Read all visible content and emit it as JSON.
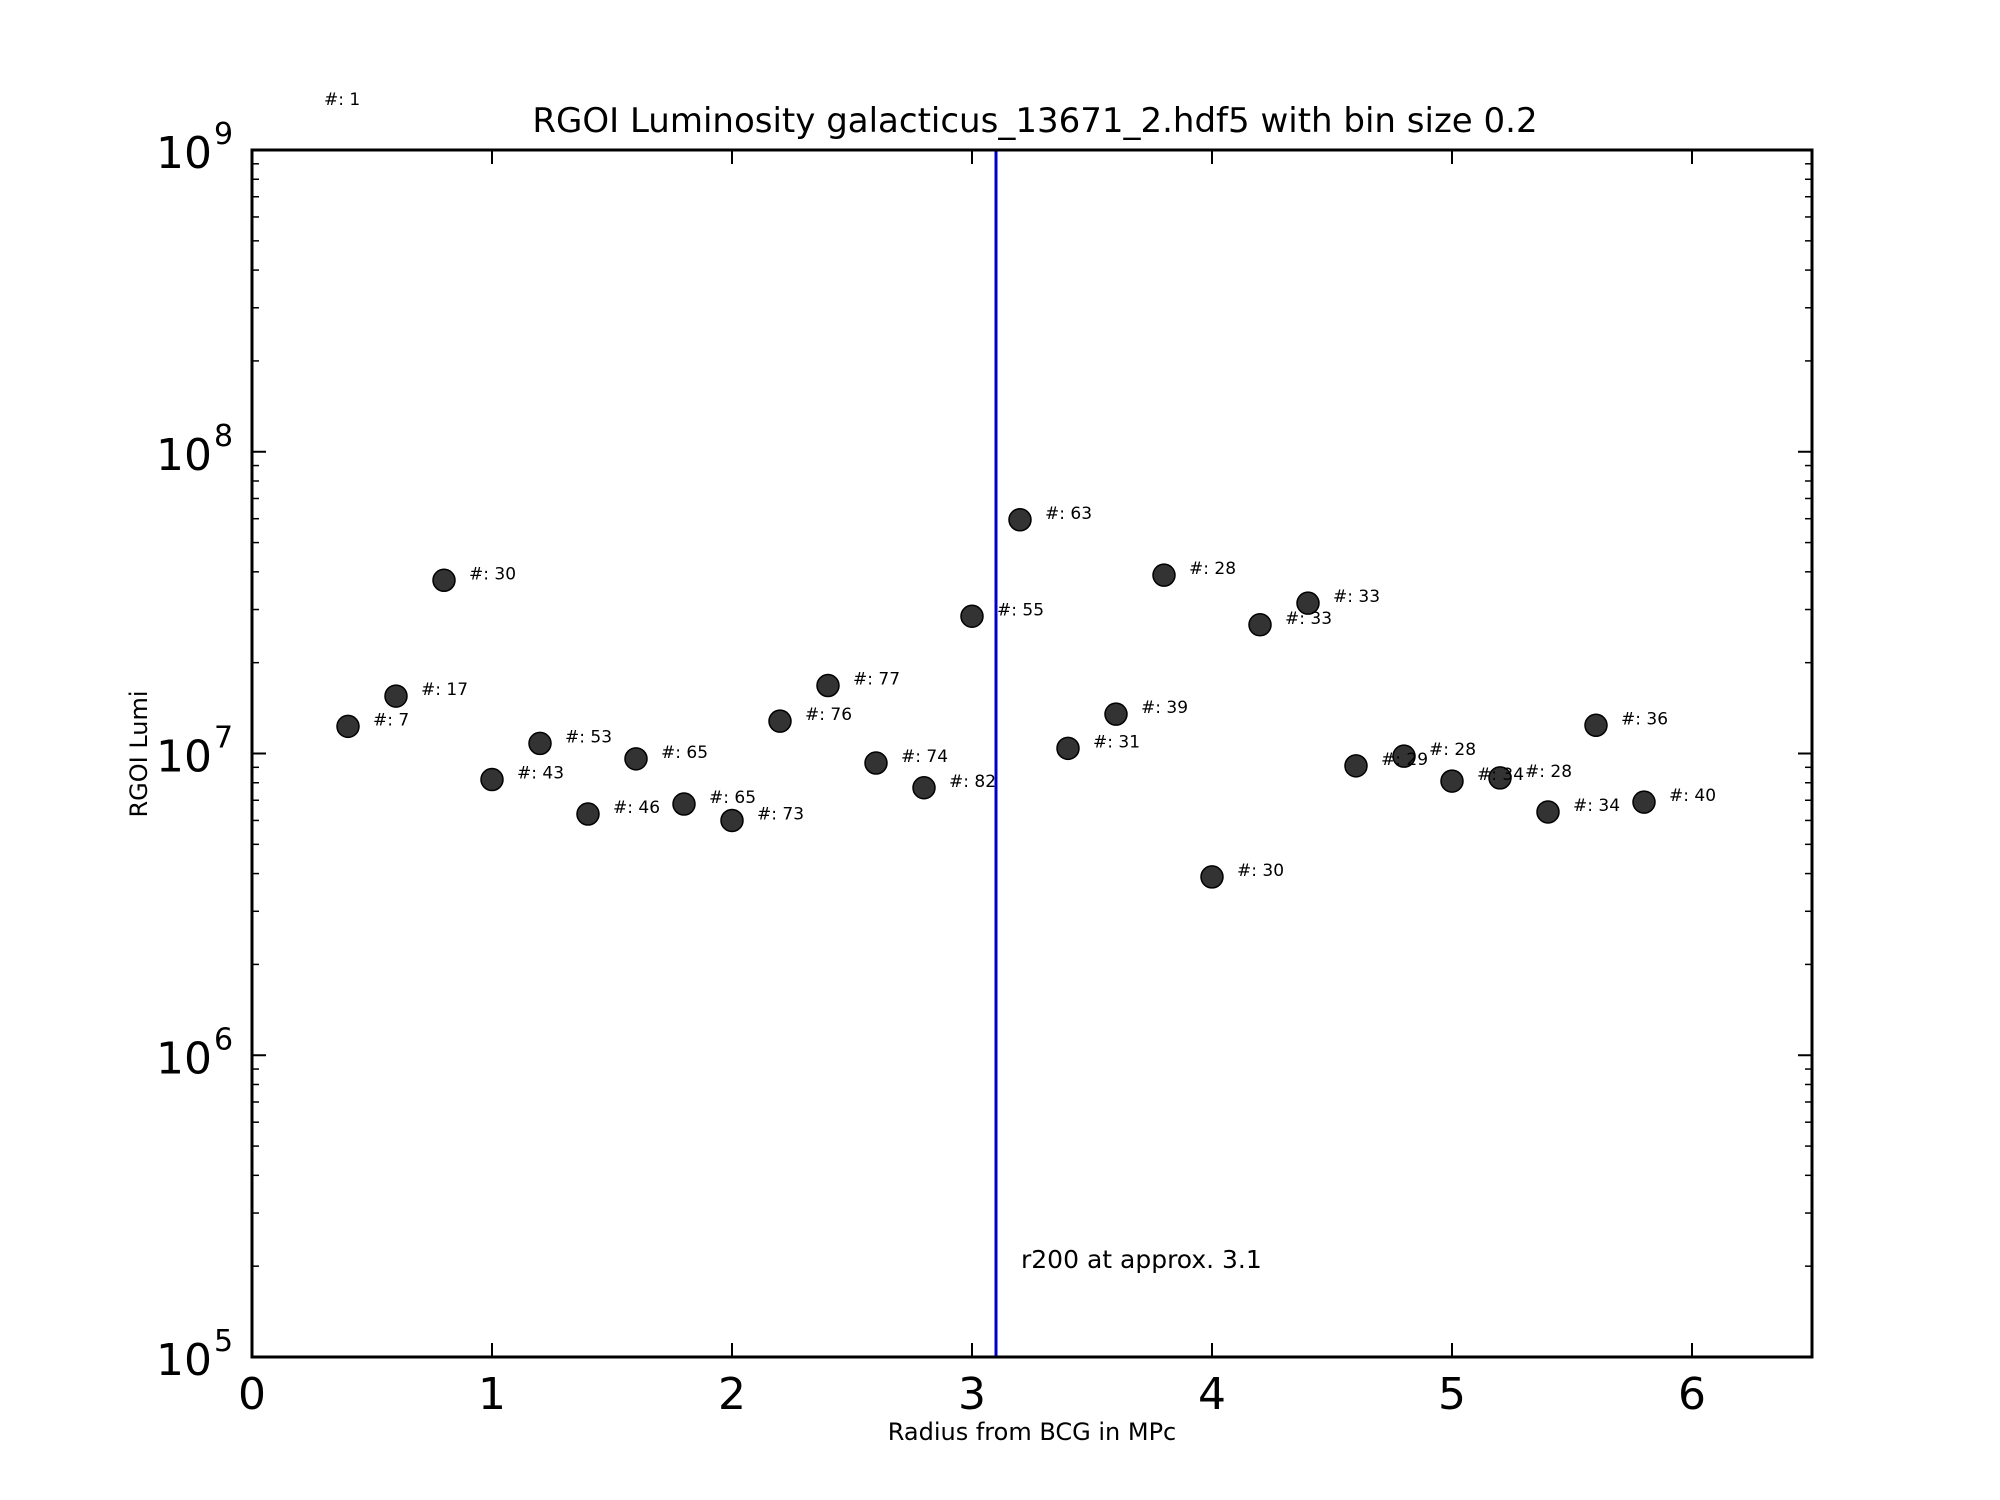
{
  "chart_data": {
    "type": "scatter",
    "title": "RGOI Luminosity galacticus_13671_2.hdf5 with bin size 0.2",
    "xlabel": "Radius from BCG in MPc",
    "ylabel": "RGOI Lumi",
    "xlim": [
      0,
      6.5
    ],
    "ylim": [
      100000,
      1000000000
    ],
    "yscale": "log",
    "x_ticks": [
      "0",
      "1",
      "2",
      "3",
      "4",
      "5",
      "6"
    ],
    "y_tick_base": "10",
    "y_tick_exponents": [
      "5",
      "6",
      "7",
      "8",
      "9"
    ],
    "marker_color": "#333333",
    "line_color": "#0000cc",
    "grid": false,
    "points": [
      {
        "x": 0.4,
        "y": 12300000,
        "label": "#: 7"
      },
      {
        "x": 0.6,
        "y": 15500000,
        "label": "#: 17"
      },
      {
        "x": 0.8,
        "y": 37500000,
        "label": "#: 30"
      },
      {
        "x": 1.0,
        "y": 8200000,
        "label": "#: 43"
      },
      {
        "x": 1.2,
        "y": 10800000,
        "label": "#: 53"
      },
      {
        "x": 1.4,
        "y": 6300000,
        "label": "#: 46"
      },
      {
        "x": 1.6,
        "y": 9600000,
        "label": "#: 65"
      },
      {
        "x": 1.8,
        "y": 6800000,
        "label": "#: 65"
      },
      {
        "x": 2.0,
        "y": 6000000,
        "label": "#: 73"
      },
      {
        "x": 2.2,
        "y": 12800000,
        "label": "#: 76"
      },
      {
        "x": 2.4,
        "y": 16800000,
        "label": "#: 77"
      },
      {
        "x": 2.6,
        "y": 9300000,
        "label": "#: 74"
      },
      {
        "x": 2.8,
        "y": 7700000,
        "label": "#: 82"
      },
      {
        "x": 3.0,
        "y": 28500000,
        "label": "#: 55"
      },
      {
        "x": 3.2,
        "y": 59500000,
        "label": "#: 63"
      },
      {
        "x": 3.4,
        "y": 10400000,
        "label": "#: 31"
      },
      {
        "x": 3.6,
        "y": 13500000,
        "label": "#: 39"
      },
      {
        "x": 3.8,
        "y": 39000000,
        "label": "#: 28"
      },
      {
        "x": 4.0,
        "y": 3900000,
        "label": "#: 30"
      },
      {
        "x": 4.2,
        "y": 26700000,
        "label": "#: 33"
      },
      {
        "x": 4.4,
        "y": 31500000,
        "label": "#: 33"
      },
      {
        "x": 4.6,
        "y": 9100000,
        "label": "#: 29"
      },
      {
        "x": 4.8,
        "y": 9800000,
        "label": "#: 28"
      },
      {
        "x": 5.0,
        "y": 8100000,
        "label": "#: 34"
      },
      {
        "x": 5.2,
        "y": 8300000,
        "label": "#: 28"
      },
      {
        "x": 5.4,
        "y": 6400000,
        "label": "#: 34"
      },
      {
        "x": 5.6,
        "y": 12400000,
        "label": "#: 36"
      },
      {
        "x": 5.8,
        "y": 6900000,
        "label": "#: 40"
      }
    ],
    "outlier_label": "#: 1",
    "vline": {
      "x": 3.1,
      "label": "r200 at approx. 3.1"
    }
  }
}
